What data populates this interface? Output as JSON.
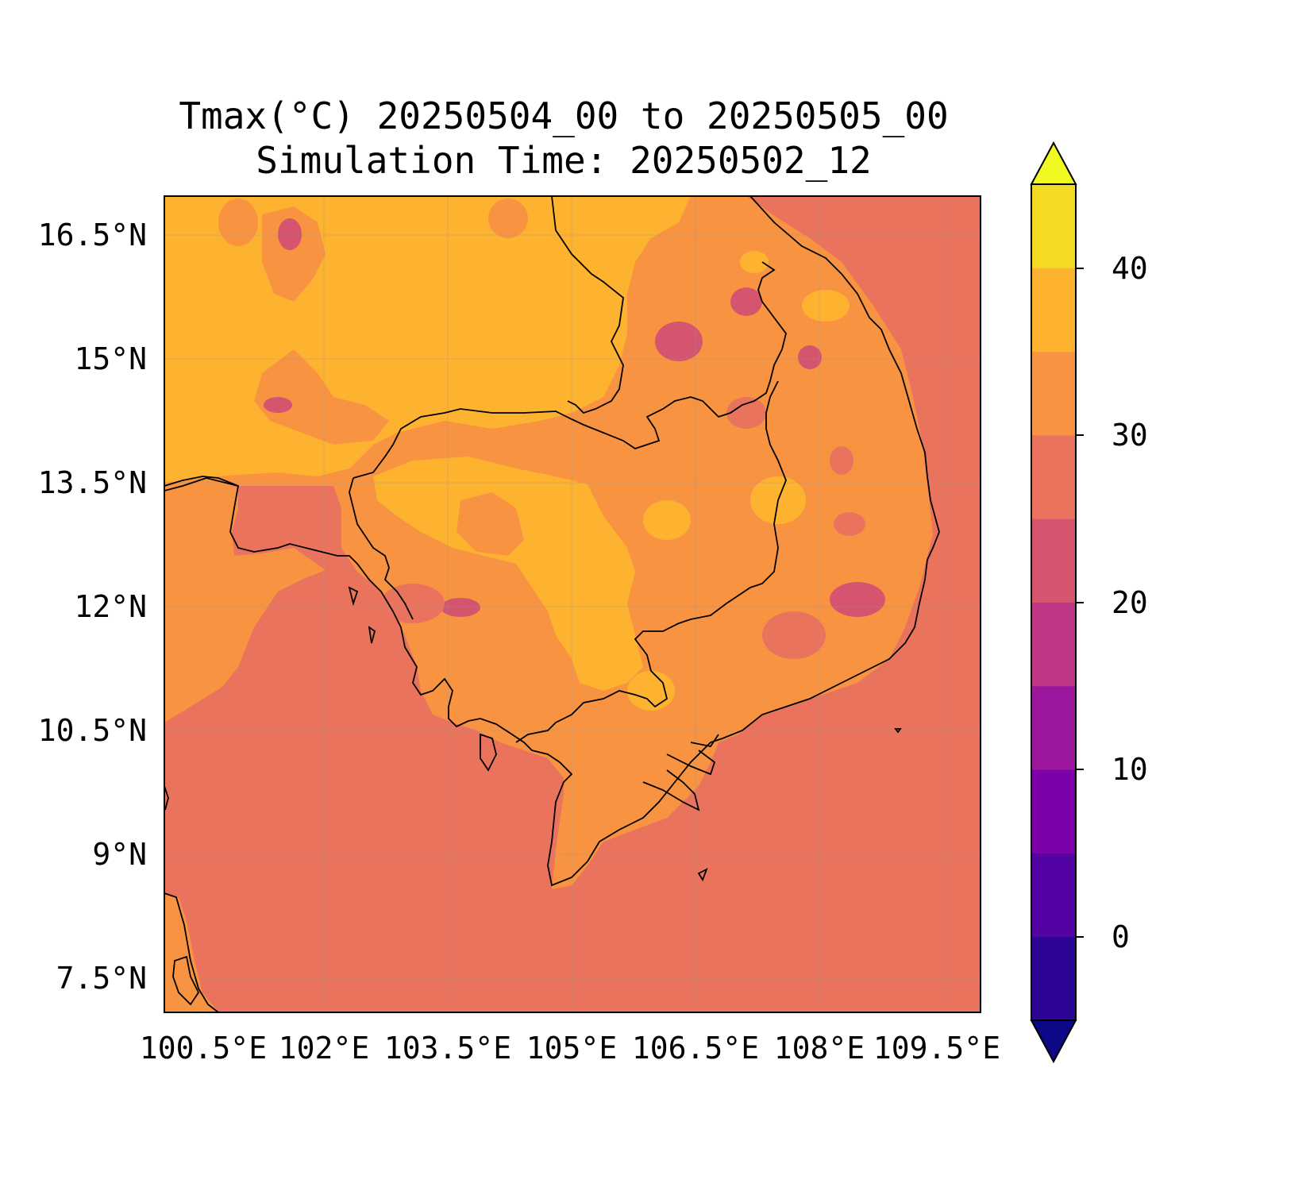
{
  "title": {
    "line1": "Tmax(°C) 20250504_00 to 20250505_00",
    "line2": "Simulation Time: 20250502_12"
  },
  "axes": {
    "lat_ticks": [
      "16.5°N",
      "15°N",
      "13.5°N",
      "12°N",
      "10.5°N",
      "9°N",
      "7.5°N"
    ],
    "lon_ticks": [
      "100.5°E",
      "102°E",
      "103.5°E",
      "105°E",
      "106.5°E",
      "108°E",
      "109.5°E"
    ]
  },
  "colorbar": {
    "ticks": [
      "0",
      "10",
      "20",
      "30",
      "40"
    ],
    "levels": [
      -5,
      0,
      5,
      10,
      15,
      20,
      25,
      30,
      35,
      40,
      45
    ],
    "colors": [
      "#0d0887",
      "#2c0594",
      "#5302a3",
      "#7b02a8",
      "#9c179e",
      "#bd3786",
      "#d5546e",
      "#e9735d",
      "#f89441",
      "#fdb32f",
      "#f2da25",
      "#f0f921"
    ],
    "extend": "both"
  },
  "map": {
    "variable": "Tmax",
    "units": "°C",
    "sea_color": "#e9735d",
    "land_warm_color": "#f89441",
    "land_hot_color": "#fdb32f",
    "cool_color": "#d5546e",
    "gridlines": true
  }
}
